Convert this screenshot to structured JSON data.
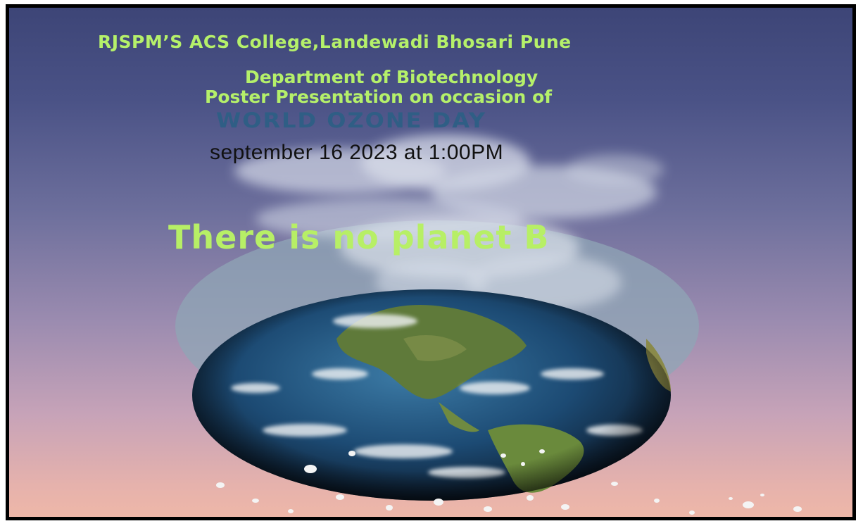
{
  "poster": {
    "college": "RJSPM’S ACS College,Landewadi Bhosari Pune",
    "department": "Department of Biotechnology",
    "event_line": "Poster Presentation on occasion of",
    "event_name": "WORLD OZONE DAY",
    "date_time": "september 16 2023 at  1:00PM",
    "slogan": "There is no planet B"
  },
  "colors": {
    "heading_green": "#b5f06a",
    "ozone_blue": "#2f5e85",
    "date_black": "#111111",
    "frame": "#000000"
  },
  "icons": {
    "earth": "earth-globe-icon",
    "smoke": "smoke-cloud"
  }
}
